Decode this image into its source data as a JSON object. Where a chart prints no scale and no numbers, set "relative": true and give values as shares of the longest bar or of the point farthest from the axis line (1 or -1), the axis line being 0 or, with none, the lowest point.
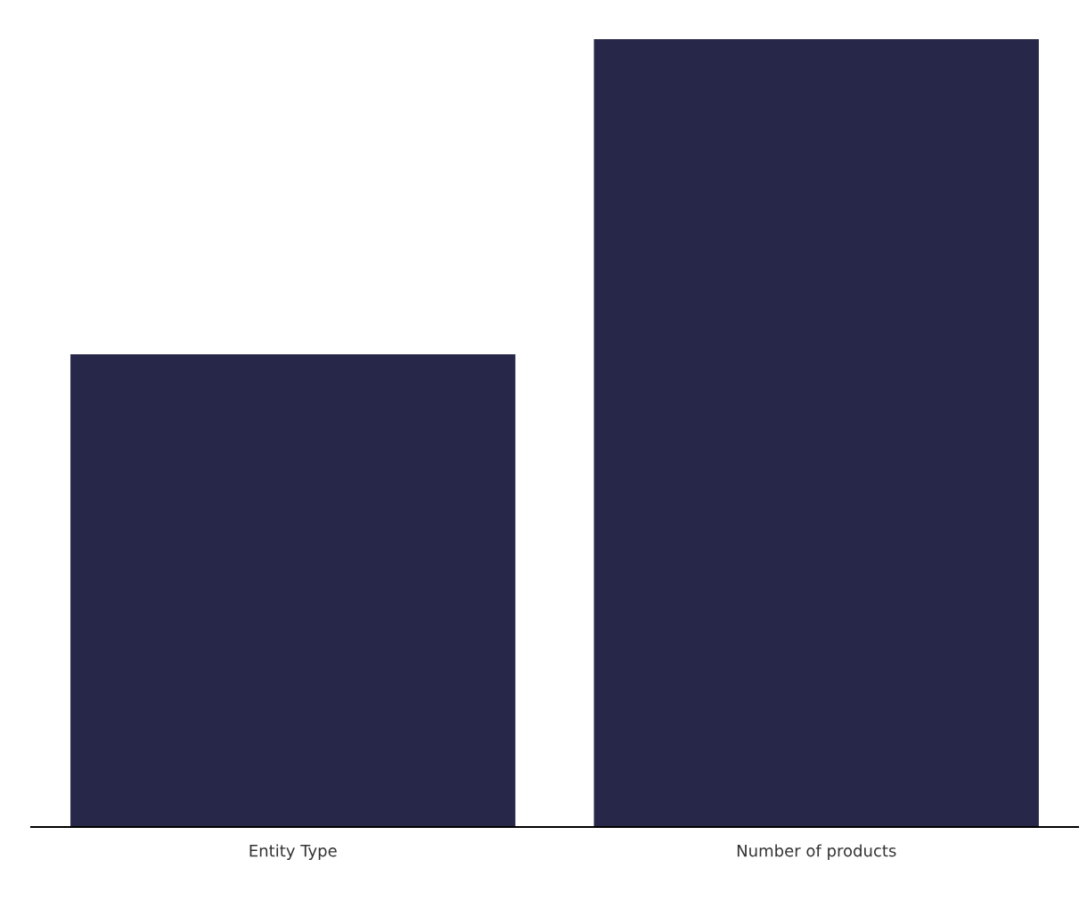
{
  "chart_data": {
    "type": "bar",
    "relative": true,
    "categories": [
      "Entity Type",
      "Number of products"
    ],
    "values": [
      0.6,
      1
    ],
    "color": "#27274a",
    "grid": false,
    "legend": false
  }
}
